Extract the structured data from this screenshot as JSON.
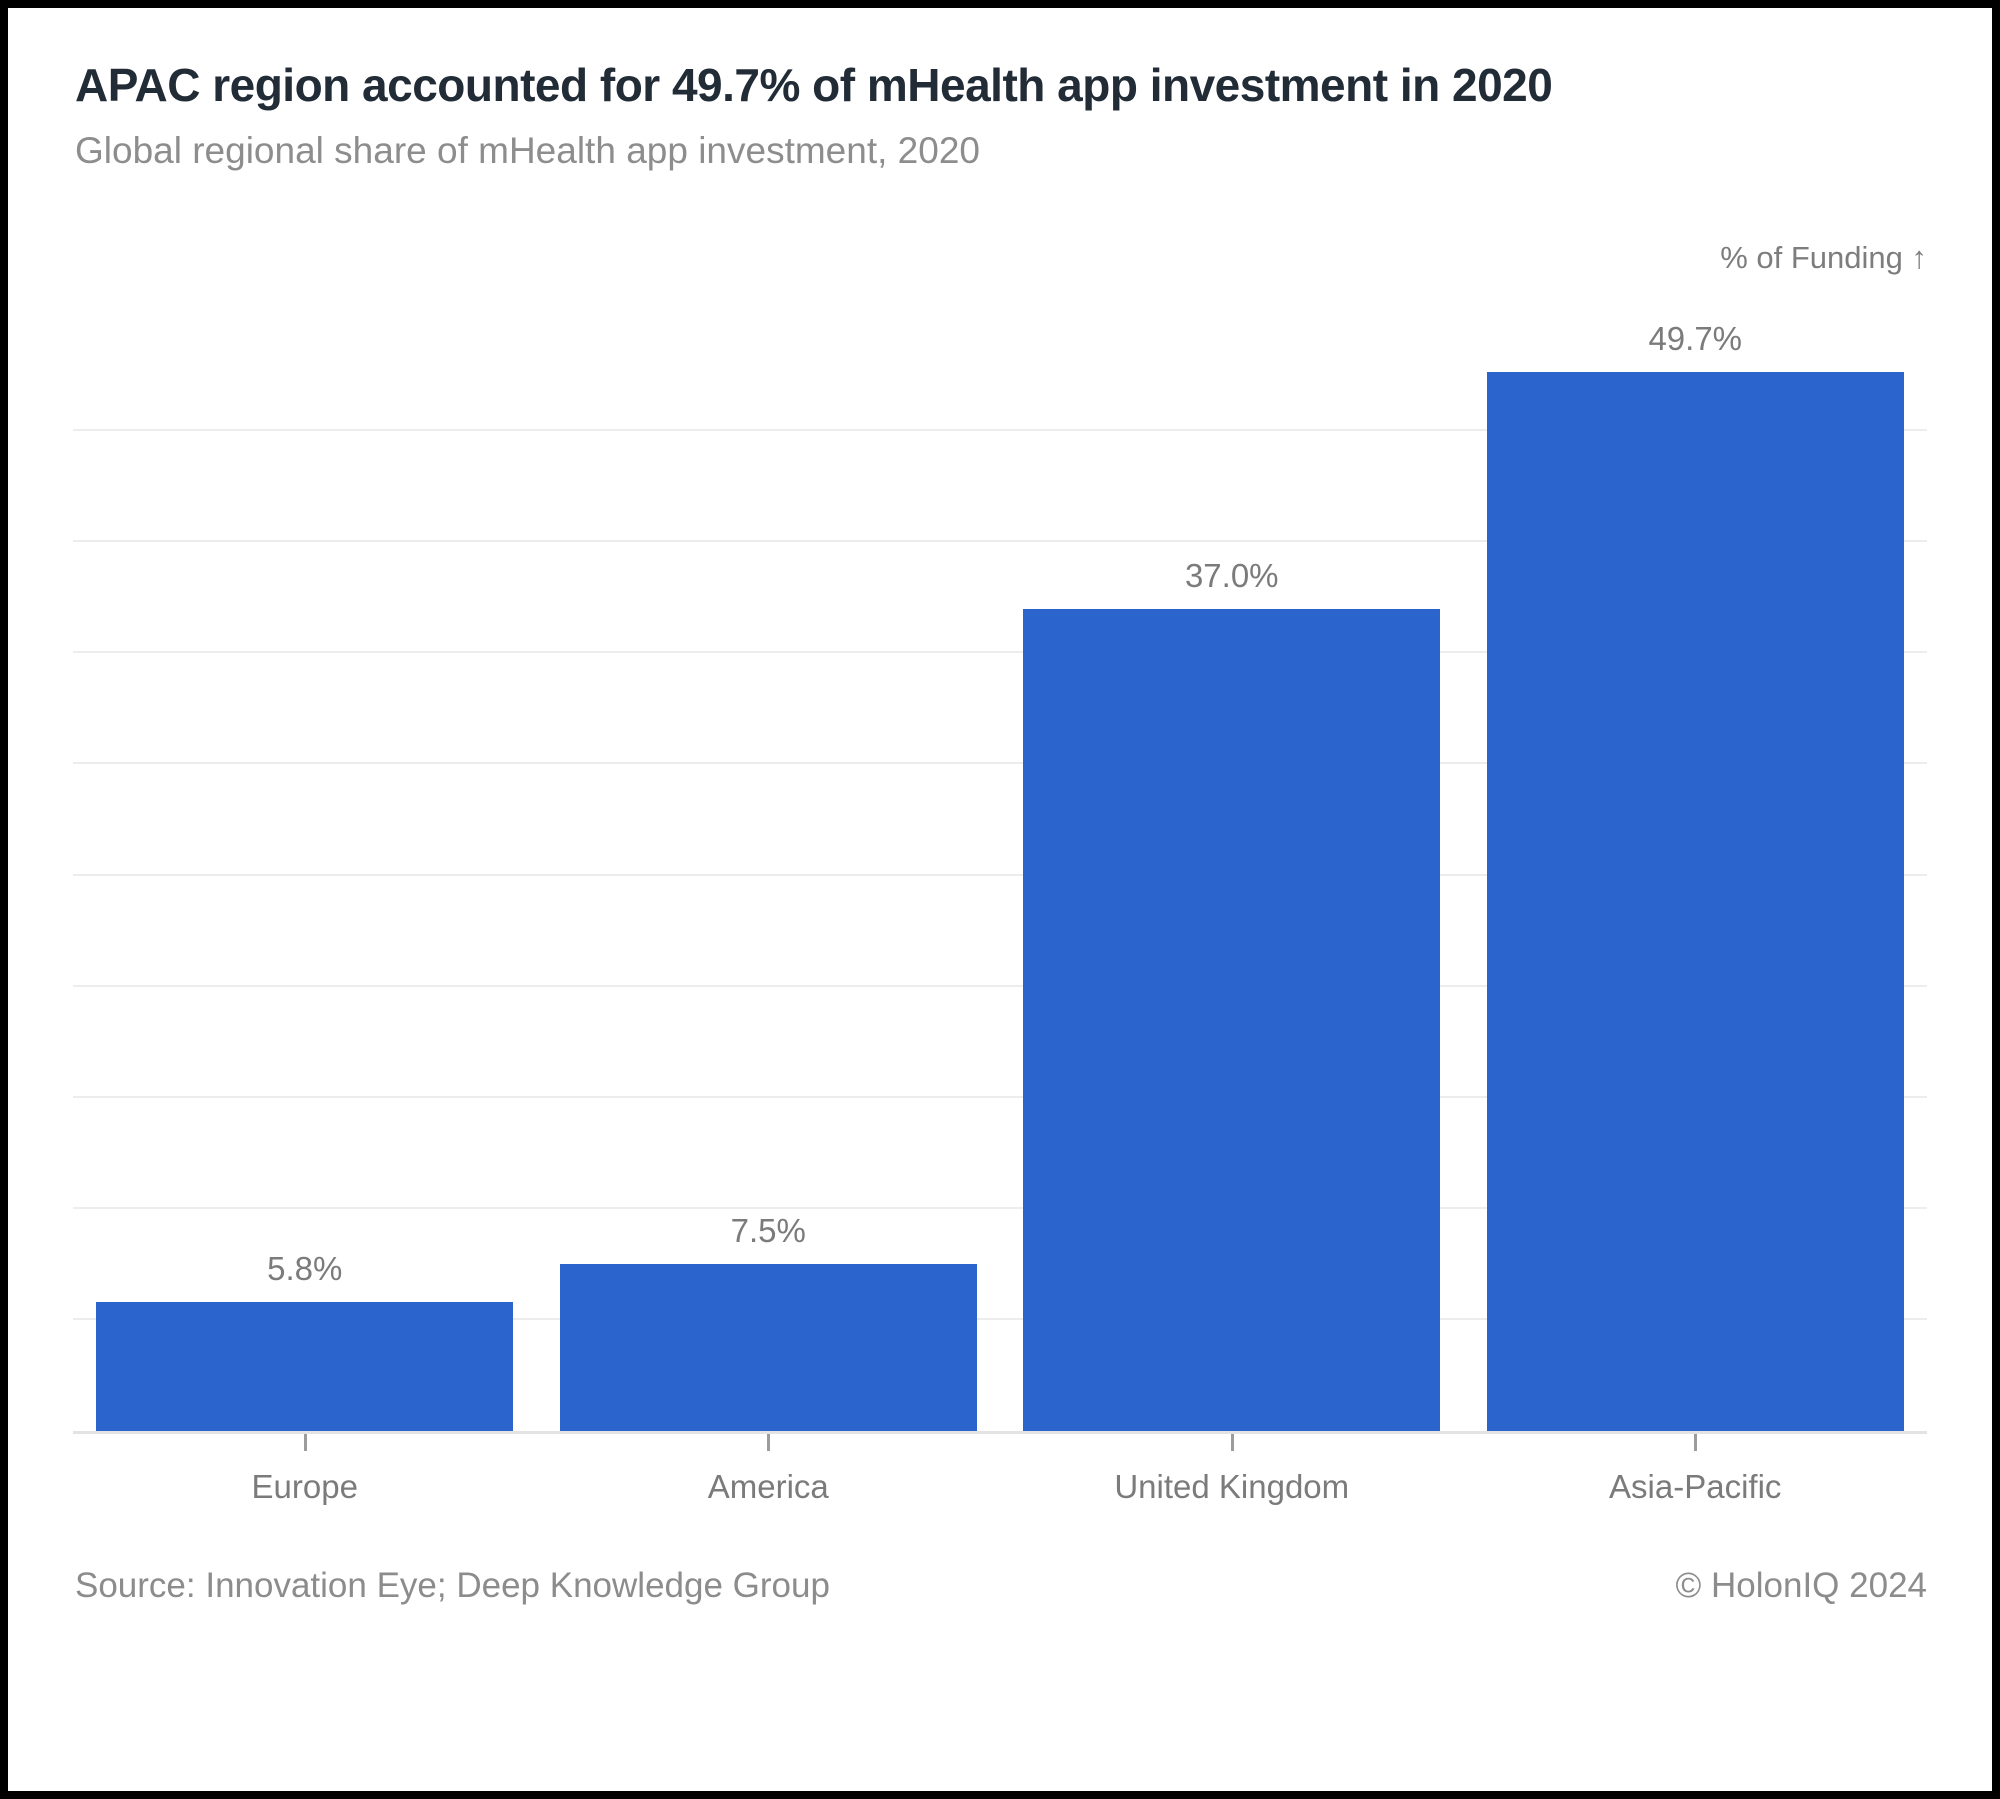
{
  "header": {
    "title": "APAC region accounted for 49.7% of mHealth app investment in 2020",
    "subtitle": "Global regional share of mHealth app investment, 2020"
  },
  "legend": {
    "label": "% of Funding ↑"
  },
  "footer": {
    "source": "Source: Innovation Eye; Deep Knowledge Group",
    "copyright": "© HolonIQ 2024"
  },
  "colors": {
    "bar": "#2c64cd",
    "title_text": "#212c37",
    "muted_text": "#7b7b7b",
    "subtitle_text": "#8d8d8d",
    "gridline": "#ededed",
    "axis_line": "#e3e3e3",
    "tick": "#9c9c9c",
    "frame": "#000000",
    "card_bg": "#ffffff"
  },
  "chart_data": {
    "type": "bar",
    "title": "APAC region accounted for 49.7% of mHealth app investment in 2020",
    "subtitle": "Global regional share of mHealth app investment, 2020",
    "series_label": "% of Funding",
    "categories": [
      "Europe",
      "America",
      "United Kingdom",
      "Asia-Pacific"
    ],
    "values": [
      5.8,
      7.5,
      37.0,
      49.7
    ],
    "value_labels": [
      "5.8%",
      "7.5%",
      "37.0%",
      "49.7%"
    ],
    "xlabel": "",
    "ylabel": "% of Funding",
    "ylim": [
      0,
      50
    ],
    "gridline_step": 5,
    "grid": true,
    "legend_position": "top-right",
    "bar_color": "#2c64cd"
  }
}
